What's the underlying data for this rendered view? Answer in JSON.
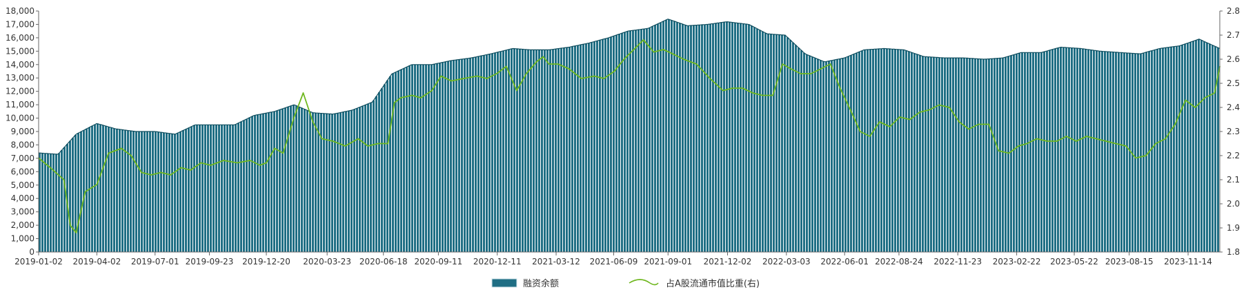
{
  "chart_data": {
    "type": "bar",
    "grid": false,
    "legend_position": "bottom-center",
    "colors": {
      "bar": "#1f6e84",
      "bar_edge": "#cfe3ea",
      "line": "#6fb71f",
      "axis": "#333333"
    },
    "x_ticks": [
      "2019-01-02",
      "2019-04-02",
      "2019-07-01",
      "2019-09-23",
      "2019-12-20",
      "2020-03-23",
      "2020-06-18",
      "2020-09-11",
      "2020-12-11",
      "2021-03-12",
      "2021-06-09",
      "2021-09-01",
      "2021-12-02",
      "2022-03-03",
      "2022-06-01",
      "2022-08-24",
      "2022-11-23",
      "2023-02-22",
      "2023-05-22",
      "2023-08-15",
      "2023-11-14"
    ],
    "y_left": {
      "ylim": [
        0,
        18000
      ],
      "ticks": [
        "0",
        "1,000",
        "2,000",
        "3,000",
        "4,000",
        "5,000",
        "6,000",
        "7,000",
        "8,000",
        "9,000",
        "10,000",
        "11,000",
        "12,000",
        "13,000",
        "14,000",
        "15,000",
        "16,000",
        "17,000",
        "18,000"
      ]
    },
    "y_right": {
      "ylim": [
        1.8,
        2.8
      ],
      "ticks": [
        "1.8",
        "1.9",
        "2.0",
        "2.1",
        "2.2",
        "2.3",
        "2.4",
        "2.5",
        "2.6",
        "2.7",
        "2.8"
      ]
    },
    "series": [
      {
        "name": "融资余额",
        "kind": "bar",
        "axis": "left",
        "x": [
          "2019-01-02",
          "2019-02-01",
          "2019-03-01",
          "2019-04-02",
          "2019-05-01",
          "2019-06-01",
          "2019-07-01",
          "2019-08-01",
          "2019-09-01",
          "2019-10-01",
          "2019-11-01",
          "2019-12-01",
          "2020-01-02",
          "2020-02-01",
          "2020-03-01",
          "2020-04-01",
          "2020-05-01",
          "2020-06-01",
          "2020-07-01",
          "2020-08-01",
          "2020-09-01",
          "2020-10-01",
          "2020-11-01",
          "2020-12-01",
          "2021-01-04",
          "2021-02-01",
          "2021-03-01",
          "2021-04-01",
          "2021-05-01",
          "2021-06-01",
          "2021-07-01",
          "2021-08-01",
          "2021-09-01",
          "2021-10-01",
          "2021-11-01",
          "2021-12-01",
          "2022-01-04",
          "2022-02-01",
          "2022-03-01",
          "2022-04-01",
          "2022-05-01",
          "2022-06-01",
          "2022-07-01",
          "2022-08-01",
          "2022-09-01",
          "2022-10-01",
          "2022-11-01",
          "2022-12-01",
          "2023-01-03",
          "2023-02-01",
          "2023-03-01",
          "2023-04-01",
          "2023-05-01",
          "2023-06-01",
          "2023-07-01",
          "2023-08-01",
          "2023-09-01",
          "2023-10-01",
          "2023-11-01",
          "2023-12-01",
          "2024-01-02"
        ],
        "values": [
          7400,
          7300,
          8800,
          9600,
          9200,
          9000,
          9000,
          8800,
          9500,
          9500,
          9500,
          10200,
          10500,
          11000,
          10400,
          10300,
          10600,
          11200,
          13300,
          14000,
          14000,
          14300,
          14500,
          14800,
          15200,
          15100,
          15100,
          15300,
          15600,
          16000,
          16500,
          16700,
          17400,
          16900,
          17000,
          17200,
          17000,
          16300,
          16200,
          14800,
          14200,
          14500,
          15100,
          15200,
          15100,
          14600,
          14500,
          14500,
          14400,
          14500,
          14900,
          14900,
          15300,
          15200,
          15000,
          14900,
          14800,
          15200,
          15400,
          15900,
          15200
        ]
      },
      {
        "name": "占A股流通市值比重(右)",
        "kind": "line",
        "axis": "right",
        "x": [
          "2019-01-02",
          "2019-01-20",
          "2019-02-10",
          "2019-02-20",
          "2019-03-01",
          "2019-03-15",
          "2019-04-02",
          "2019-04-20",
          "2019-05-10",
          "2019-05-25",
          "2019-06-10",
          "2019-06-25",
          "2019-07-10",
          "2019-07-25",
          "2019-08-10",
          "2019-08-25",
          "2019-09-10",
          "2019-09-25",
          "2019-10-15",
          "2019-11-05",
          "2019-11-25",
          "2019-12-10",
          "2019-12-20",
          "2020-01-02",
          "2020-01-15",
          "2020-02-01",
          "2020-02-15",
          "2020-03-01",
          "2020-03-15",
          "2020-04-01",
          "2020-04-20",
          "2020-05-10",
          "2020-05-25",
          "2020-06-10",
          "2020-06-25",
          "2020-07-05",
          "2020-07-15",
          "2020-08-01",
          "2020-08-15",
          "2020-09-01",
          "2020-09-15",
          "2020-10-01",
          "2020-10-20",
          "2020-11-10",
          "2020-11-25",
          "2020-12-10",
          "2020-12-25",
          "2021-01-10",
          "2021-01-25",
          "2021-02-10",
          "2021-02-20",
          "2021-03-01",
          "2021-03-15",
          "2021-04-01",
          "2021-04-20",
          "2021-05-10",
          "2021-05-25",
          "2021-06-10",
          "2021-06-25",
          "2021-07-10",
          "2021-07-25",
          "2021-08-10",
          "2021-08-25",
          "2021-09-10",
          "2021-09-25",
          "2021-10-15",
          "2021-11-05",
          "2021-11-25",
          "2021-12-10",
          "2021-12-25",
          "2022-01-10",
          "2022-01-25",
          "2022-02-10",
          "2022-02-25",
          "2022-03-10",
          "2022-03-25",
          "2022-04-10",
          "2022-04-25",
          "2022-05-10",
          "2022-05-25",
          "2022-06-10",
          "2022-06-25",
          "2022-07-10",
          "2022-07-25",
          "2022-08-10",
          "2022-08-25",
          "2022-09-10",
          "2022-09-25",
          "2022-10-10",
          "2022-10-25",
          "2022-11-10",
          "2022-11-25",
          "2022-12-10",
          "2022-12-25",
          "2023-01-10",
          "2023-01-25",
          "2023-02-10",
          "2023-02-25",
          "2023-03-10",
          "2023-03-25",
          "2023-04-10",
          "2023-04-25",
          "2023-05-10",
          "2023-05-25",
          "2023-06-10",
          "2023-06-25",
          "2023-07-10",
          "2023-07-25",
          "2023-08-10",
          "2023-08-25",
          "2023-09-10",
          "2023-09-25",
          "2023-10-10",
          "2023-10-25",
          "2023-11-10",
          "2023-11-25",
          "2023-12-10",
          "2023-12-25",
          "2024-01-02"
        ],
        "values": [
          2.19,
          2.15,
          2.1,
          1.91,
          1.88,
          2.05,
          2.08,
          2.21,
          2.23,
          2.2,
          2.13,
          2.12,
          2.13,
          2.12,
          2.15,
          2.14,
          2.17,
          2.16,
          2.18,
          2.17,
          2.18,
          2.16,
          2.17,
          2.23,
          2.21,
          2.36,
          2.46,
          2.34,
          2.27,
          2.26,
          2.24,
          2.27,
          2.24,
          2.25,
          2.25,
          2.42,
          2.44,
          2.45,
          2.44,
          2.47,
          2.53,
          2.51,
          2.52,
          2.53,
          2.52,
          2.54,
          2.57,
          2.47,
          2.54,
          2.59,
          2.61,
          2.58,
          2.58,
          2.56,
          2.52,
          2.53,
          2.52,
          2.55,
          2.6,
          2.64,
          2.68,
          2.63,
          2.64,
          2.62,
          2.6,
          2.58,
          2.52,
          2.47,
          2.48,
          2.48,
          2.46,
          2.45,
          2.45,
          2.58,
          2.56,
          2.54,
          2.54,
          2.56,
          2.58,
          2.48,
          2.39,
          2.3,
          2.28,
          2.34,
          2.32,
          2.36,
          2.35,
          2.38,
          2.39,
          2.41,
          2.4,
          2.34,
          2.31,
          2.33,
          2.33,
          2.22,
          2.21,
          2.24,
          2.25,
          2.27,
          2.26,
          2.26,
          2.28,
          2.26,
          2.28,
          2.27,
          2.26,
          2.25,
          2.24,
          2.19,
          2.2,
          2.25,
          2.27,
          2.33,
          2.43,
          2.4,
          2.44,
          2.46,
          2.57
        ]
      }
    ]
  }
}
